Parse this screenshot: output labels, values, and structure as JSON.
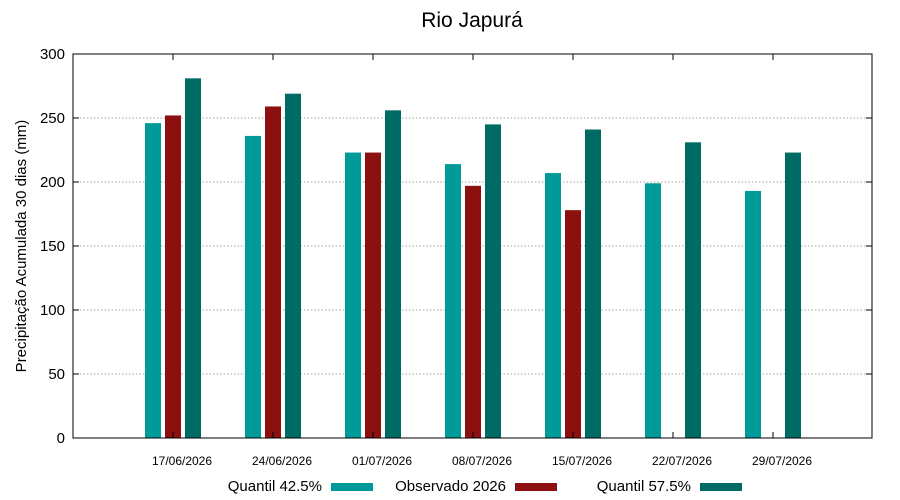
{
  "chart_data": {
    "type": "bar",
    "title": "Rio Japurá",
    "xlabel": "",
    "ylabel": "Precipitação Acumulada 30 dias (mm)",
    "ylim": [
      0,
      300
    ],
    "yticks": [
      0,
      50,
      100,
      150,
      200,
      250,
      300
    ],
    "grid": true,
    "legend_position": "bottom",
    "categories": [
      "17/06/2026",
      "24/06/2026",
      "01/07/2026",
      "08/07/2026",
      "15/07/2026",
      "22/07/2026",
      "29/07/2026"
    ],
    "series": [
      {
        "name": "Quantil 42.5%",
        "color": "#009b98",
        "values": [
          246,
          236,
          223,
          214,
          207,
          199,
          193
        ]
      },
      {
        "name": "Observado 2026",
        "color": "#8c1010",
        "values": [
          252,
          259,
          223,
          197,
          178,
          null,
          null
        ]
      },
      {
        "name": "Quantil 57.5%",
        "color": "#006a64",
        "values": [
          281,
          269,
          256,
          245,
          241,
          231,
          223
        ]
      }
    ]
  }
}
